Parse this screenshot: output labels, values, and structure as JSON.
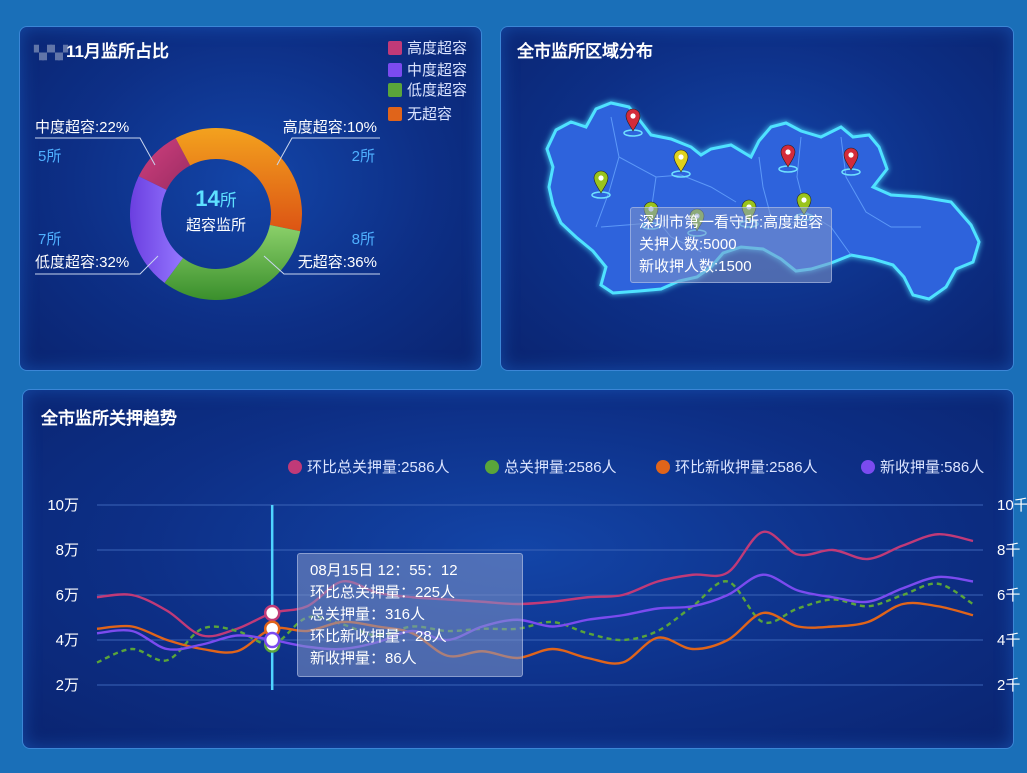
{
  "colors": {
    "high": "#c03a78",
    "medium": "#7b4bef",
    "low": "#5aa53a",
    "none": "#e0641a",
    "cursor": "#4fd4ff"
  },
  "panel1": {
    "title_prefix": "▚▞▚▞",
    "title": "11月监所占比",
    "legend": [
      "高度超容",
      "中度超容",
      "低度超容",
      "无超容"
    ],
    "center_value": "14",
    "center_unit": "所",
    "center_label": "超容监所",
    "labels": {
      "medium_pct": "中度超容:22%",
      "medium_cnt": "5所",
      "high_pct": "高度超容:10%",
      "high_cnt": "2所",
      "low_cnt": "7所",
      "low_pct": "低度超容:32%",
      "none_cnt": "8所",
      "none_pct": "无超容:36%"
    }
  },
  "panel2": {
    "title": "全市监所区域分布",
    "tooltip": [
      "深圳市第一看守所:高度超容",
      "关押人数:5000",
      "新收押人数:1500"
    ]
  },
  "panel3": {
    "title": "全市监所关押趋势",
    "legend": [
      "环比总关押量:2586人",
      "总关押量:2586人",
      "环比新收押量:2586人",
      "新收押量:586人"
    ],
    "tooltip": [
      "08月15日 12：55：12",
      "环比总关押量：225人",
      "总关押量：316人",
      "环比新收押量：28人",
      "新收押量：86人"
    ],
    "y_left": [
      "10万",
      "8万",
      "6万",
      "4万",
      "2万"
    ],
    "y_right": [
      "10千",
      "8千",
      "6千",
      "4千",
      "2千"
    ]
  },
  "chart_data": [
    {
      "type": "pie",
      "title": "11月监所占比",
      "categories": [
        "高度超容",
        "无超容",
        "低度超容",
        "中度超容"
      ],
      "values": [
        10,
        36,
        32,
        22
      ],
      "counts": [
        2,
        8,
        7,
        5
      ]
    },
    {
      "type": "line",
      "title": "全市监所关押趋势",
      "x_count": 26,
      "ylim_left": [
        2,
        10
      ],
      "ylim_right": [
        2,
        10
      ],
      "series": [
        {
          "name": "环比总关押量:2586人",
          "values": [
            5.9,
            6.0,
            5.3,
            4.2,
            4.5,
            5.2,
            5.5,
            6.6,
            6.1,
            5.9,
            5.8,
            5.7,
            5.6,
            5.7,
            5.9,
            6.0,
            6.6,
            6.9,
            7.0,
            8.8,
            7.8,
            8.0,
            7.6,
            8.2,
            8.7,
            8.4
          ]
        },
        {
          "name": "总关押量:2586人",
          "values": [
            3.0,
            3.6,
            3.1,
            4.5,
            4.4,
            3.8,
            5.0,
            4.7,
            4.2,
            4.6,
            4.4,
            4.5,
            4.5,
            4.8,
            4.3,
            4.0,
            4.4,
            5.5,
            6.6,
            4.8,
            5.4,
            5.8,
            5.5,
            6.0,
            6.5,
            5.6
          ]
        },
        {
          "name": "环比新收押量:2586人",
          "values": [
            4.5,
            4.6,
            4.0,
            3.6,
            3.5,
            4.5,
            4.4,
            4.8,
            4.6,
            4.3,
            3.3,
            3.5,
            3.2,
            3.6,
            3.2,
            3.0,
            4.1,
            3.6,
            4.0,
            5.2,
            4.6,
            4.6,
            4.8,
            5.6,
            5.5,
            5.1
          ]
        },
        {
          "name": "新收押量:586人",
          "values": [
            4.3,
            4.4,
            3.6,
            3.8,
            4.2,
            4.0,
            3.7,
            3.6,
            3.9,
            4.4,
            4.0,
            4.6,
            4.9,
            4.6,
            4.9,
            5.1,
            5.4,
            5.5,
            6.0,
            6.9,
            6.2,
            5.9,
            5.7,
            6.3,
            6.8,
            6.6
          ]
        }
      ],
      "cursor_index": 5
    }
  ]
}
